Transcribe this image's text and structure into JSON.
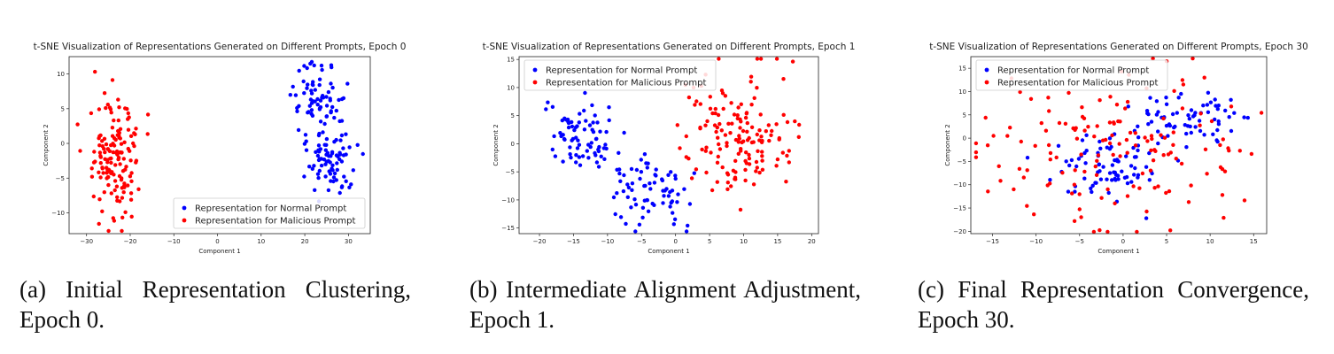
{
  "chart_data": [
    {
      "type": "scatter",
      "title": "t-SNE Visualization of Representations Generated on Different Prompts, Epoch 0",
      "xlabel": "Component 1",
      "ylabel": "Component 2",
      "xlim": [
        -34,
        35
      ],
      "ylim": [
        -13,
        12.5
      ],
      "xticks": [
        -30,
        -20,
        -10,
        0,
        10,
        20,
        30
      ],
      "yticks": [
        -10,
        -5,
        0,
        5,
        10
      ],
      "legend_position": "lower-right",
      "series": [
        {
          "name": "Representation for Normal Prompt",
          "color": "#0000ff",
          "clusters": [
            {
              "cx": 23,
              "cy": 6.5,
              "sx": 3.2,
              "sy": 2.4,
              "n": 70
            },
            {
              "cx": 25.5,
              "cy": -2.3,
              "sx": 3.2,
              "sy": 2.3,
              "n": 80
            }
          ]
        },
        {
          "name": "Representation for Malicious Prompt",
          "color": "#ff0000",
          "clusters": [
            {
              "cx": -23.5,
              "cy": -2.5,
              "sx": 3.2,
              "sy": 4.2,
              "n": 150
            }
          ]
        }
      ]
    },
    {
      "type": "scatter",
      "title": "t-SNE Visualization of Representations Generated on Different Prompts, Epoch 1",
      "xlabel": "Component 1",
      "ylabel": "Component 2",
      "xlim": [
        -23,
        21
      ],
      "ylim": [
        -16,
        15.5
      ],
      "xticks": [
        -20,
        -15,
        -10,
        -5,
        0,
        5,
        10,
        15,
        20
      ],
      "yticks": [
        -15,
        -10,
        -5,
        0,
        5,
        10,
        15
      ],
      "legend_position": "upper-left",
      "series": [
        {
          "name": "Representation for Normal Prompt",
          "color": "#0000ff",
          "clusters": [
            {
              "cx": -13.5,
              "cy": 1,
              "sx": 2.8,
              "sy": 3,
              "n": 75
            },
            {
              "cx": -3.5,
              "cy": -8.5,
              "sx": 3,
              "sy": 3.3,
              "n": 75
            }
          ]
        },
        {
          "name": "Representation for Malicious Prompt",
          "color": "#ff0000",
          "clusters": [
            {
              "cx": 10,
              "cy": 1.5,
              "sx": 4.2,
              "sy": 5.5,
              "n": 150
            }
          ]
        }
      ]
    },
    {
      "type": "scatter",
      "title": "t-SNE Visualization of Representations Generated on Different Prompts, Epoch 30",
      "xlabel": "Component 1",
      "ylabel": "Component 2",
      "xlim": [
        -17.5,
        16.5
      ],
      "ylim": [
        -20.5,
        17.5
      ],
      "xticks": [
        -15,
        -10,
        -5,
        0,
        5,
        10,
        15
      ],
      "yticks": [
        -20,
        -15,
        -10,
        -5,
        0,
        5,
        10,
        15
      ],
      "legend_position": "upper-left",
      "series": [
        {
          "name": "Representation for Normal Prompt",
          "color": "#0000ff",
          "clusters": [
            {
              "cx": -1.5,
              "cy": -6,
              "sx": 3.5,
              "sy": 3.5,
              "n": 80
            },
            {
              "cx": 6.5,
              "cy": 4.5,
              "sx": 3.5,
              "sy": 3,
              "n": 70
            }
          ]
        },
        {
          "name": "Representation for Malicious Prompt",
          "color": "#ff0000",
          "clusters": [
            {
              "cx": -1,
              "cy": -1,
              "sx": 8.5,
              "sy": 9,
              "n": 150
            }
          ]
        }
      ]
    }
  ],
  "captions": [
    "(a) Initial Representation Clustering, Epoch 0.",
    "(b) Intermediate Alignment Adjustment, Epoch 1.",
    "(c) Final Representation Convergence, Epoch 30."
  ]
}
